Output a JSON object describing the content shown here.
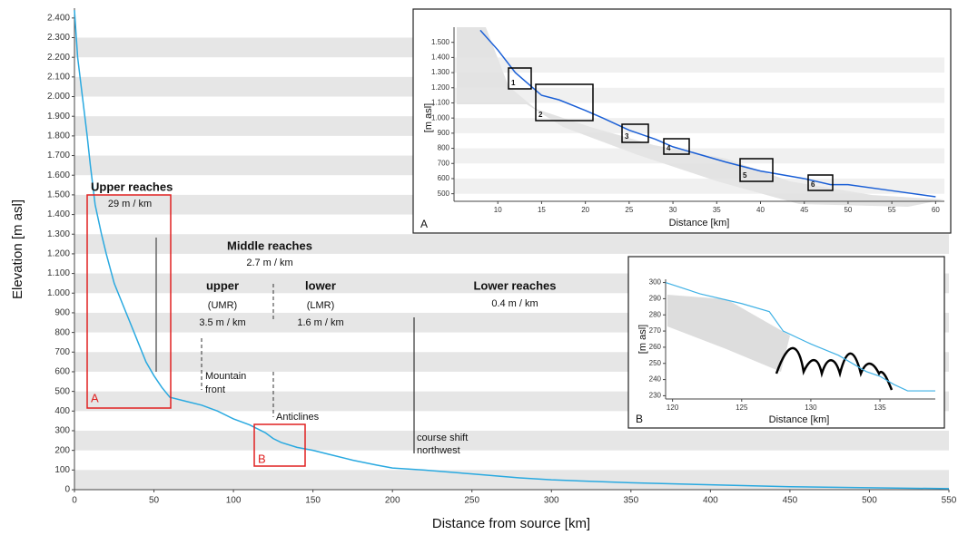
{
  "chart_data": [
    {
      "type": "line",
      "x_label": "Distance from source [km]",
      "y_label": "Elevation [m asl]",
      "color": "#29a9e0",
      "stripes": true,
      "xlim": [
        0,
        550
      ],
      "ylim": [
        0,
        2450
      ],
      "xticks": [
        0,
        50,
        100,
        150,
        200,
        250,
        300,
        350,
        400,
        450,
        500,
        550
      ],
      "yticks": [
        0,
        100,
        200,
        300,
        400,
        500,
        600,
        700,
        800,
        900,
        {
          "value": 1000,
          "label": "1.000"
        },
        {
          "value": 1100,
          "label": "1.100"
        },
        {
          "value": 1200,
          "label": "1.200"
        },
        {
          "value": 1300,
          "label": "1.300"
        },
        {
          "value": 1400,
          "label": "1.400"
        },
        {
          "value": 1500,
          "label": "1.500"
        },
        {
          "value": 1600,
          "label": "1.600"
        },
        {
          "value": 1700,
          "label": "1.700"
        },
        {
          "value": 1800,
          "label": "1.800"
        },
        {
          "value": 1900,
          "label": "1.900"
        },
        {
          "value": 2000,
          "label": "2.000"
        },
        {
          "value": 2100,
          "label": "2.100"
        },
        {
          "value": 2200,
          "label": "2.200"
        },
        {
          "value": 2300,
          "label": "2.300"
        },
        {
          "value": 2400,
          "label": "2.400"
        }
      ],
      "x": [
        0,
        2,
        5,
        8,
        10,
        13,
        17,
        20,
        25,
        30,
        35,
        40,
        45,
        50,
        55,
        60,
        70,
        80,
        90,
        100,
        110,
        120,
        125,
        130,
        140,
        150,
        160,
        175,
        190,
        200,
        220,
        250,
        280,
        300,
        350,
        400,
        450,
        500,
        550
      ],
      "values": [
        2440,
        2200,
        2000,
        1800,
        1650,
        1450,
        1300,
        1200,
        1050,
        950,
        850,
        750,
        650,
        580,
        520,
        470,
        450,
        430,
        400,
        360,
        330,
        290,
        260,
        240,
        215,
        200,
        180,
        150,
        125,
        110,
        100,
        80,
        60,
        50,
        35,
        25,
        15,
        10,
        5
      ],
      "annotations": {
        "upper_reaches": "Upper reaches",
        "upper_gradient": "29 m / km",
        "middle_reaches": "Middle reaches",
        "middle_gradient": "2.7 m / km",
        "umr": "upper",
        "umr_abbr": "(UMR)",
        "umr_gradient": "3.5 m / km",
        "lmr": "lower",
        "lmr_abbr": "(LMR)",
        "lmr_gradient": "1.6 m / km",
        "lower_reaches": "Lower reaches",
        "lower_gradient": "0.4 m / km",
        "mountain_front": [
          "Mountain",
          "front"
        ],
        "anticlines": "Anticlines",
        "course_shift": [
          "course shift",
          "northwest"
        ],
        "box_a": "A",
        "box_b": "B"
      }
    },
    {
      "type": "line",
      "panel": "A",
      "x_label": "Distance [km]",
      "y_label": "[m asl]",
      "color": "#1a5fd6",
      "stripes": true,
      "xlim": [
        5,
        61
      ],
      "ylim": [
        450,
        1600
      ],
      "xticks": [
        10,
        15,
        20,
        25,
        30,
        35,
        40,
        45,
        50,
        55,
        60
      ],
      "yticks": [
        500,
        600,
        700,
        800,
        900,
        {
          "value": 1000,
          "label": "1.000"
        },
        {
          "value": 1100,
          "label": "1.100"
        },
        {
          "value": 1200,
          "label": "1.200"
        },
        {
          "value": 1300,
          "label": "1.300"
        },
        {
          "value": 1400,
          "label": "1.400"
        },
        {
          "value": 1500,
          "label": "1.500"
        }
      ],
      "x": [
        8,
        10,
        12,
        14,
        15,
        17,
        20,
        22,
        25,
        28,
        30,
        33,
        36,
        40,
        45,
        48,
        50,
        55,
        60
      ],
      "values": [
        1580,
        1450,
        1300,
        1200,
        1150,
        1120,
        1050,
        1000,
        920,
        860,
        810,
        760,
        710,
        650,
        600,
        560,
        560,
        520,
        480
      ],
      "boxes": [
        "1",
        "2",
        "3",
        "4",
        "5",
        "6"
      ]
    },
    {
      "type": "line",
      "panel": "B",
      "x_label": "Distance [km]",
      "y_label": "[m asl]",
      "color": "#3fb1e5",
      "stripes": false,
      "xlim": [
        119.5,
        139
      ],
      "ylim": [
        228,
        302
      ],
      "xticks": [
        120,
        125,
        130,
        135
      ],
      "yticks": [
        230,
        240,
        250,
        260,
        270,
        280,
        290,
        300
      ],
      "x": [
        119.5,
        122,
        125,
        127,
        128,
        130,
        132,
        134,
        135,
        136,
        137,
        139
      ],
      "values": [
        300,
        293,
        287,
        282,
        270,
        262,
        255,
        245,
        242,
        237,
        233,
        233
      ]
    }
  ]
}
